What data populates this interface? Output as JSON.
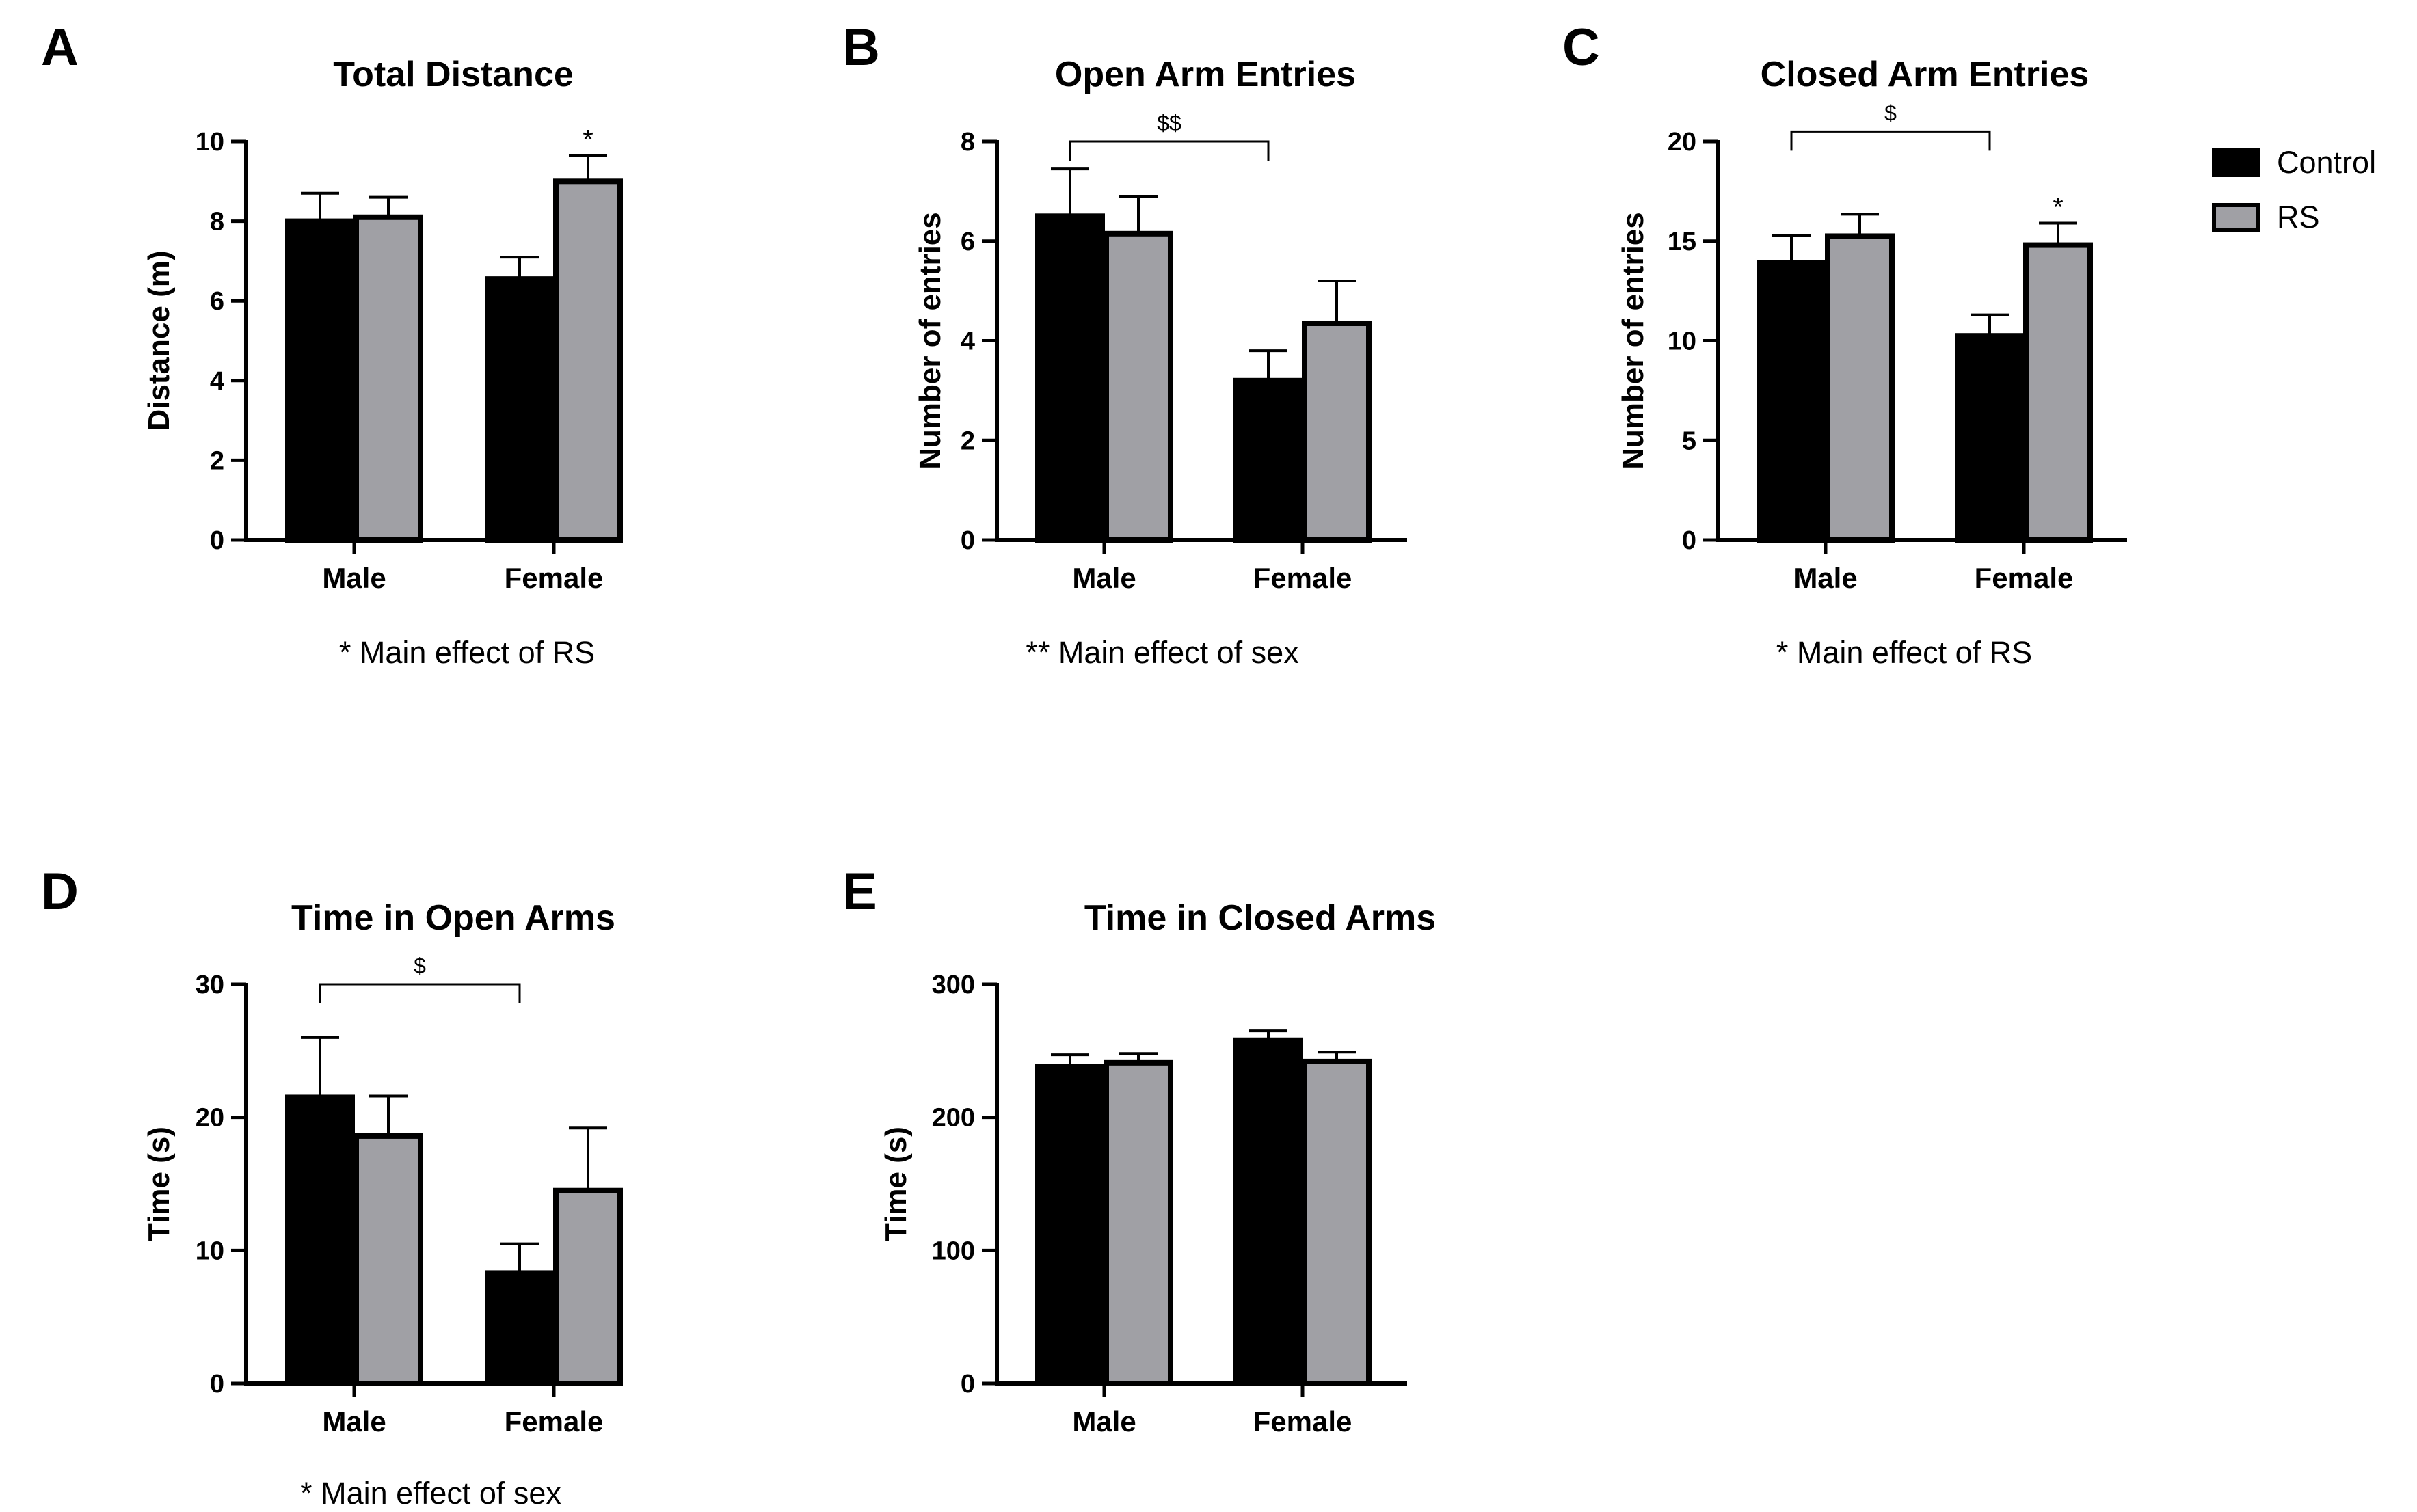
{
  "legend": {
    "entries": [
      {
        "name": "Control",
        "color": "#000000"
      },
      {
        "name": "RS",
        "color": "#a0a0a5"
      }
    ]
  },
  "chart_data": [
    {
      "panel": "A",
      "type": "bar",
      "title": "Total Distance",
      "ylabel": "Distance (m)",
      "xlabel": "",
      "categories": [
        "Male",
        "Female"
      ],
      "ylim": [
        0,
        10
      ],
      "yticks": [
        0,
        2,
        4,
        6,
        8,
        10
      ],
      "series": [
        {
          "name": "Control",
          "values": [
            8.0,
            6.55
          ],
          "errors": [
            0.7,
            0.55
          ]
        },
        {
          "name": "RS",
          "values": [
            8.1,
            9.0
          ],
          "errors": [
            0.5,
            0.65
          ]
        }
      ],
      "significance": [
        {
          "category": 1,
          "series": 1,
          "text": "*"
        }
      ],
      "bracket": null,
      "note": "*  Main effect of RS"
    },
    {
      "panel": "B",
      "type": "bar",
      "title": "Open Arm Entries",
      "ylabel": "Number of entries",
      "xlabel": "",
      "categories": [
        "Male",
        "Female"
      ],
      "ylim": [
        0,
        8
      ],
      "yticks": [
        0,
        2,
        4,
        6,
        8
      ],
      "series": [
        {
          "name": "Control",
          "values": [
            6.5,
            3.2
          ],
          "errors": [
            0.95,
            0.6
          ]
        },
        {
          "name": "RS",
          "values": [
            6.15,
            4.35
          ],
          "errors": [
            0.75,
            0.85
          ]
        }
      ],
      "significance": [],
      "bracket": {
        "text": "$$",
        "level": 8.0
      },
      "note": "**  Main effect of sex"
    },
    {
      "panel": "C",
      "type": "bar",
      "title": "Closed Arm Entries",
      "ylabel": "Number of entries",
      "xlabel": "",
      "categories": [
        "Male",
        "Female"
      ],
      "ylim": [
        0,
        20
      ],
      "yticks": [
        0,
        5,
        10,
        15,
        20
      ],
      "series": [
        {
          "name": "Control",
          "values": [
            13.9,
            10.25
          ],
          "errors": [
            1.4,
            1.05
          ]
        },
        {
          "name": "RS",
          "values": [
            15.25,
            14.8
          ],
          "errors": [
            1.1,
            1.1
          ]
        }
      ],
      "significance": [
        {
          "category": 1,
          "series": 1,
          "text": "*"
        }
      ],
      "bracket": {
        "text": "$",
        "level": 20.5
      },
      "note": "* Main effect of RS"
    },
    {
      "panel": "D",
      "type": "bar",
      "title": "Time in Open Arms",
      "ylabel": "Time (s)",
      "xlabel": "",
      "categories": [
        "Male",
        "Female"
      ],
      "ylim": [
        0,
        30
      ],
      "yticks": [
        0,
        10,
        20,
        30
      ],
      "series": [
        {
          "name": "Control",
          "values": [
            21.5,
            8.3
          ],
          "errors": [
            4.5,
            2.2
          ]
        },
        {
          "name": "RS",
          "values": [
            18.6,
            14.5
          ],
          "errors": [
            3.0,
            4.7
          ]
        }
      ],
      "significance": [],
      "bracket": {
        "text": "$",
        "level": 30.0
      },
      "note": "*  Main effect of sex"
    },
    {
      "panel": "E",
      "type": "bar",
      "title": "Time in Closed Arms",
      "ylabel": "Time (s)",
      "xlabel": "",
      "categories": [
        "Male",
        "Female"
      ],
      "ylim": [
        0,
        300
      ],
      "yticks": [
        0,
        100,
        200,
        300
      ],
      "series": [
        {
          "name": "Control",
          "values": [
            238,
            258
          ],
          "errors": [
            9,
            7
          ]
        },
        {
          "name": "RS",
          "values": [
            241,
            242
          ],
          "errors": [
            7,
            7
          ]
        }
      ],
      "significance": [],
      "bracket": null,
      "note": ""
    }
  ]
}
